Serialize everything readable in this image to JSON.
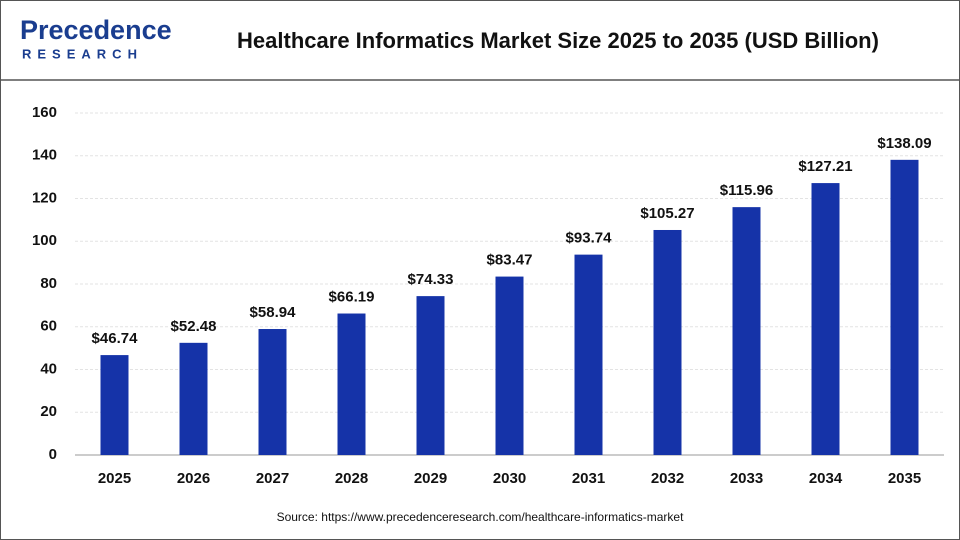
{
  "logo": {
    "name": "Precedence",
    "sub": "RESEARCH"
  },
  "chart_data": {
    "type": "bar",
    "title": "Healthcare Informatics Market Size 2025 to 2035 (USD Billion)",
    "categories": [
      "2025",
      "2026",
      "2027",
      "2028",
      "2029",
      "2030",
      "2031",
      "2032",
      "2033",
      "2034",
      "2035"
    ],
    "values": [
      46.74,
      52.48,
      58.94,
      66.19,
      74.33,
      83.47,
      93.74,
      105.27,
      115.96,
      127.21,
      138.09
    ],
    "value_labels": [
      "$46.74",
      "$52.48",
      "$58.94",
      "$66.19",
      "$74.33",
      "$83.47",
      "$93.74",
      "$105.27",
      "$115.96",
      "$127.21",
      "$138.09"
    ],
    "color": "#1533a8",
    "ylim": [
      0,
      160
    ],
    "yticks": [
      0,
      20,
      40,
      60,
      80,
      100,
      120,
      140,
      160
    ],
    "grid": true,
    "source": "Source: https://www.precedenceresearch.com/healthcare-informatics-market"
  }
}
